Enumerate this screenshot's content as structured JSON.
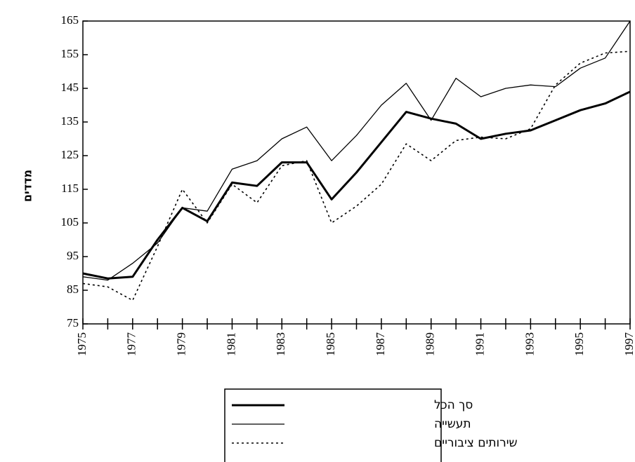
{
  "chart_data": {
    "type": "line",
    "y_label": "מדדים",
    "x": [
      1975,
      1976,
      1977,
      1978,
      1979,
      1980,
      1981,
      1982,
      1983,
      1984,
      1985,
      1986,
      1987,
      1988,
      1989,
      1990,
      1991,
      1992,
      1993,
      1994,
      1995,
      1996,
      1997
    ],
    "series": [
      {
        "name": "סך הכל",
        "color": "#000000",
        "style": "solid",
        "width": 3,
        "values": [
          90,
          88.5,
          89,
          100,
          109.5,
          105.5,
          117,
          116,
          123,
          123,
          112,
          120,
          129,
          138,
          136,
          134.5,
          130,
          131.5,
          132.5,
          135.5,
          138.5,
          140.5,
          144
        ]
      },
      {
        "name": "תעשייה",
        "color": "#000000",
        "style": "solid",
        "width": 1.3,
        "values": [
          89,
          88,
          93,
          99,
          109.5,
          108.5,
          121,
          123.5,
          130,
          133.5,
          123.5,
          131,
          140,
          146.5,
          135.5,
          148,
          142.5,
          145,
          146,
          145.5,
          151,
          154,
          165
        ]
      },
      {
        "name": "שירותים ציבוריים",
        "color": "#000000",
        "style": "dashed",
        "width": 1.6,
        "values": [
          87,
          86,
          82,
          98,
          115,
          105,
          116.5,
          111,
          122,
          123.5,
          105,
          110,
          116.5,
          128.5,
          123.5,
          129.5,
          130.5,
          130,
          133,
          146,
          152.5,
          155.5,
          156
        ]
      }
    ],
    "xlim": [
      1975,
      1997
    ],
    "xticks": [
      1975,
      1977,
      1979,
      1981,
      1983,
      1985,
      1987,
      1989,
      1991,
      1993,
      1995,
      1997
    ],
    "ylim": [
      75,
      165
    ],
    "yticks": [
      75,
      85,
      95,
      105,
      115,
      125,
      135,
      145,
      155,
      165
    ],
    "grid": false
  }
}
